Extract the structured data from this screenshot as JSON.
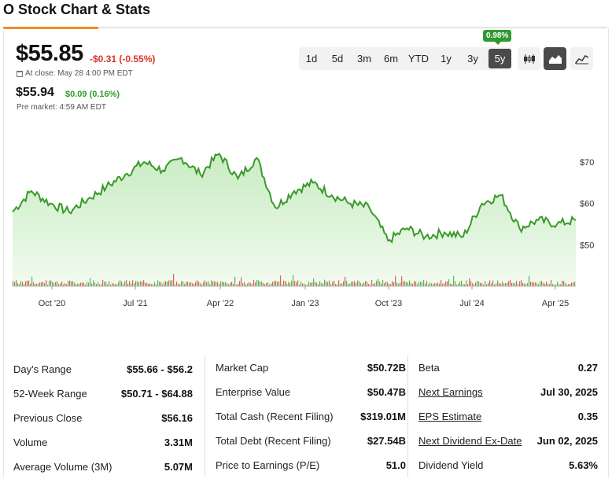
{
  "title": "O Stock Chart & Stats",
  "quote": {
    "price": "$55.85",
    "change": "-$0.31 (-0.55%)",
    "close_label": "At close: May 28 4:00 PM EDT",
    "pre_price": "$55.94",
    "pre_change": "$0.09 (0.16%)",
    "pre_label": "Pre market: 4:59 AM EDT"
  },
  "ranges": {
    "items": [
      "1d",
      "5d",
      "3m",
      "6m",
      "YTD",
      "1y",
      "3y",
      "5y"
    ],
    "active": "5y",
    "badge": "0.98%"
  },
  "chart_types": [
    {
      "icon": "candlestick-icon",
      "active": false
    },
    {
      "icon": "area-chart-icon",
      "active": true
    },
    {
      "icon": "line-chart-icon",
      "active": false
    }
  ],
  "colors": {
    "line": "#3a9a2a",
    "area": "#c9ecc2",
    "negative": "#d9332b",
    "positive": "#2f9a2f",
    "volume_up": "#3a9a2a",
    "volume_down": "#d9332b"
  },
  "chart_data": {
    "type": "area",
    "x_ticks": [
      "Oct '20",
      "Jul '21",
      "Apr '22",
      "Jan '23",
      "Oct '23",
      "Jul '24",
      "Apr '25"
    ],
    "y_ticks": [
      "$70",
      "$60",
      "$50"
    ],
    "y_tick_values": [
      70,
      60,
      50
    ],
    "ylim": [
      40,
      74
    ],
    "x": [
      "2020-06",
      "2020-08",
      "2020-10",
      "2020-12",
      "2021-02",
      "2021-04",
      "2021-06",
      "2021-08",
      "2021-10",
      "2021-12",
      "2022-02",
      "2022-04",
      "2022-06",
      "2022-08",
      "2022-10",
      "2022-12",
      "2023-02",
      "2023-04",
      "2023-06",
      "2023-08",
      "2023-10",
      "2023-12",
      "2024-02",
      "2024-04",
      "2024-06",
      "2024-08",
      "2024-10",
      "2024-12",
      "2025-02",
      "2025-04",
      "2025-05"
    ],
    "values": [
      58,
      63,
      60,
      58,
      61,
      64,
      67,
      70,
      68,
      71,
      67,
      72,
      66,
      71,
      59,
      63,
      65,
      62,
      60,
      59,
      51,
      54,
      52,
      53,
      52,
      60,
      62,
      54,
      56,
      55,
      56
    ],
    "series": [
      {
        "name": "O",
        "values": [
          58,
          63,
          60,
          58,
          61,
          64,
          67,
          70,
          68,
          71,
          67,
          72,
          66,
          71,
          59,
          63,
          65,
          62,
          60,
          59,
          51,
          54,
          52,
          53,
          52,
          60,
          62,
          54,
          56,
          55,
          56
        ]
      }
    ]
  },
  "stats": {
    "col1": [
      {
        "label": "Day's Range",
        "value": "$55.66 - $56.2",
        "link": false
      },
      {
        "label": "52-Week Range",
        "value": "$50.71 - $64.88",
        "link": false
      },
      {
        "label": "Previous Close",
        "value": "$56.16",
        "link": false
      },
      {
        "label": "Volume",
        "value": "3.31M",
        "link": false
      },
      {
        "label": "Average Volume (3M)",
        "value": "5.07M",
        "link": false
      }
    ],
    "col2": [
      {
        "label": "Market Cap",
        "value": "$50.72B",
        "link": false
      },
      {
        "label": "Enterprise Value",
        "value": "$50.47B",
        "link": false
      },
      {
        "label": "Total Cash (Recent Filing)",
        "value": "$319.01M",
        "link": false
      },
      {
        "label": "Total Debt (Recent Filing)",
        "value": "$27.54B",
        "link": false
      },
      {
        "label": "Price to Earnings (P/E)",
        "value": "51.0",
        "link": false
      }
    ],
    "col3": [
      {
        "label": "Beta",
        "value": "0.27",
        "link": false
      },
      {
        "label": "Next Earnings",
        "value": "Jul 30, 2025",
        "link": true
      },
      {
        "label": "EPS Estimate",
        "value": "0.35",
        "link": true
      },
      {
        "label": "Next Dividend Ex-Date",
        "value": "Jun 02, 2025",
        "link": true
      },
      {
        "label": "Dividend Yield",
        "value": "5.63%",
        "link": false
      }
    ]
  }
}
